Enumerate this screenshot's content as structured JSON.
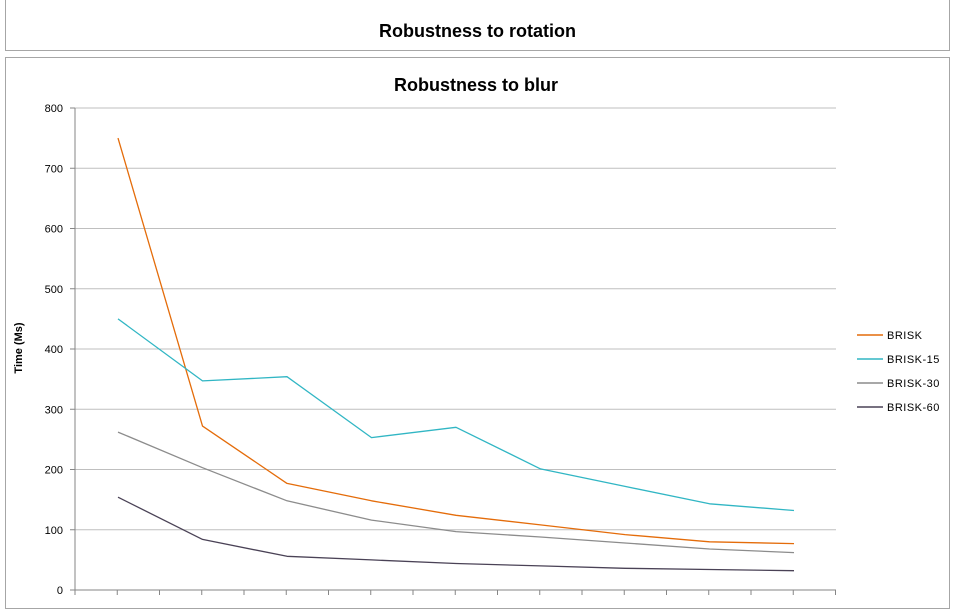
{
  "background_chart": {
    "title": "Robustness to rotation"
  },
  "chart_data": {
    "type": "line",
    "title": "Robustness to blur",
    "xlabel": "",
    "ylabel": "Time (Ms)",
    "ylim": [
      0,
      800
    ],
    "yticks": [
      0,
      100,
      200,
      300,
      400,
      500,
      600,
      700,
      800
    ],
    "grid": true,
    "legend_position": "right",
    "x": [
      1,
      2,
      3,
      4,
      5,
      6,
      7,
      8,
      9
    ],
    "series": [
      {
        "name": "BRISK",
        "color": "#e46c0a",
        "values": [
          750,
          272,
          177,
          148,
          124,
          108,
          92,
          80,
          77
        ]
      },
      {
        "name": "BRISK-15",
        "color": "#31b6c4",
        "values": [
          450,
          347,
          354,
          253,
          270,
          201,
          172,
          143,
          132
        ]
      },
      {
        "name": "BRISK-30",
        "color": "#8c8c8c",
        "values": [
          262,
          203,
          148,
          116,
          97,
          88,
          78,
          68,
          62
        ]
      },
      {
        "name": "BRISK-60",
        "color": "#4a4256",
        "values": [
          154,
          84,
          56,
          50,
          44,
          40,
          36,
          34,
          32
        ]
      }
    ]
  }
}
